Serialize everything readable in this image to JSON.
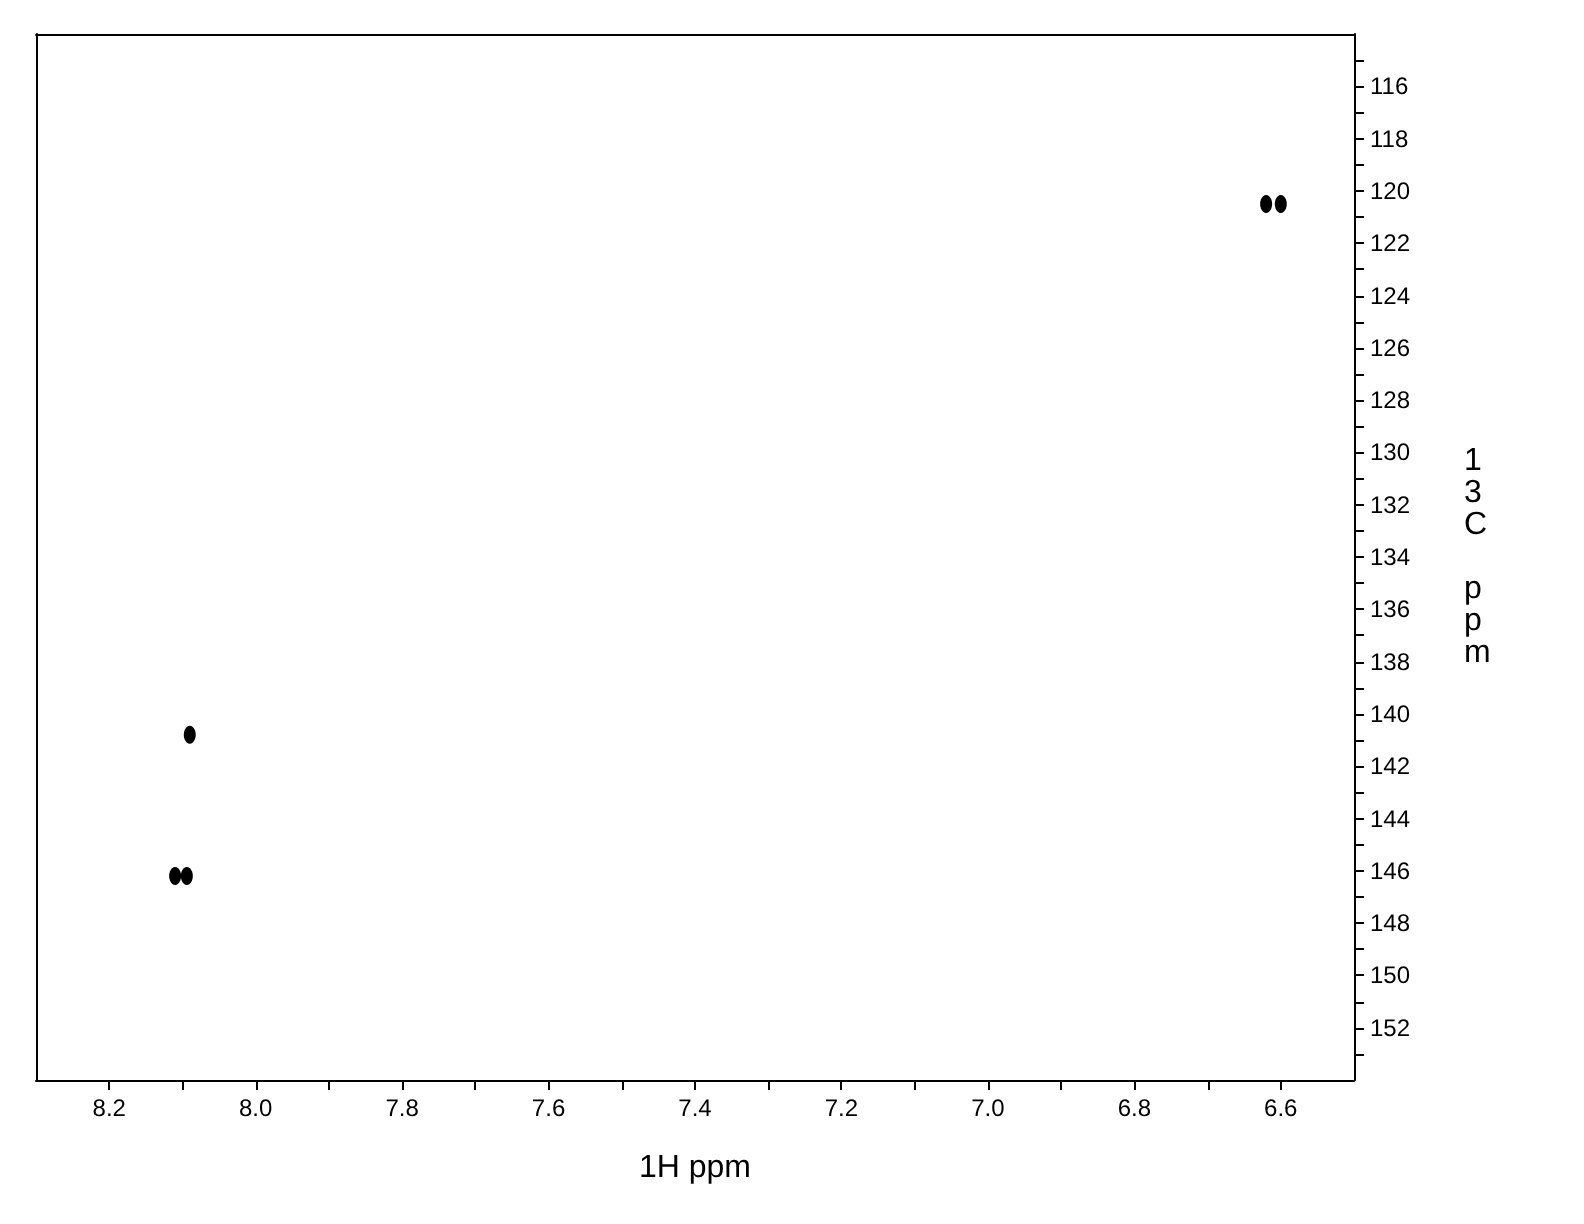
{
  "chart_data": {
    "type": "scatter",
    "xlabel": "1H ppm",
    "ylabel": "13C ppm",
    "xlim": [
      8.3,
      6.5
    ],
    "ylim": [
      154,
      114
    ],
    "xticks": [
      8.2,
      {
        "value": 8.1,
        "label": null
      },
      {
        "value": 8,
        "label": "8.0"
      },
      {
        "value": 7.9,
        "label": null
      },
      7.8,
      {
        "value": 7.7,
        "label": null
      },
      7.6,
      {
        "value": 7.5,
        "label": null
      },
      7.4,
      {
        "value": 7.3,
        "label": null
      },
      7.2,
      {
        "value": 7.1,
        "label": null
      },
      {
        "value": 7,
        "label": "7.0"
      },
      {
        "value": 6.9,
        "label": null
      },
      6.8,
      {
        "value": 6.7,
        "label": null
      },
      6.6
    ],
    "yticks": [
      {
        "value": 115,
        "label": null
      },
      116,
      {
        "value": 117,
        "label": null
      },
      118,
      {
        "value": 119,
        "label": null
      },
      120,
      {
        "value": 121,
        "label": null
      },
      122,
      {
        "value": 123,
        "label": null
      },
      124,
      {
        "value": 125,
        "label": null
      },
      126,
      {
        "value": 127,
        "label": null
      },
      128,
      {
        "value": 129,
        "label": null
      },
      130,
      {
        "value": 131,
        "label": null
      },
      132,
      {
        "value": 133,
        "label": null
      },
      134,
      {
        "value": 135,
        "label": null
      },
      136,
      {
        "value": 137,
        "label": null
      },
      138,
      {
        "value": 139,
        "label": null
      },
      140,
      {
        "value": 141,
        "label": null
      },
      142,
      {
        "value": 143,
        "label": null
      },
      144,
      {
        "value": 145,
        "label": null
      },
      146,
      {
        "value": 147,
        "label": null
      },
      148,
      {
        "value": 149,
        "label": null
      },
      150,
      {
        "value": 151,
        "label": null
      },
      152,
      {
        "value": 153,
        "label": null
      }
    ],
    "grid": false,
    "marker": "circle",
    "series": [
      {
        "color": "#000000",
        "x": [
          6.62,
          6.6,
          8.09,
          8.11,
          8.094
        ],
        "values": [
          120.5,
          120.5,
          140.8,
          146.2,
          146.2
        ]
      }
    ]
  }
}
